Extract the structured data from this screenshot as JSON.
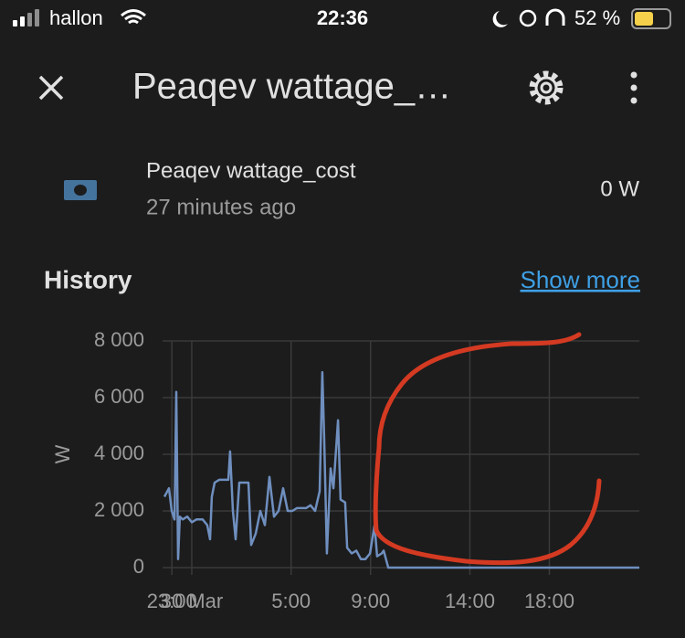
{
  "status_bar": {
    "carrier": "hallon",
    "time": "22:36",
    "battery": "52 %"
  },
  "header": {
    "title": "Peaqev wattage_…"
  },
  "entity": {
    "name": "Peaqev wattage_cost",
    "last_changed": "27 minutes ago",
    "state": "0 W"
  },
  "history": {
    "title": "History",
    "show_more": "Show more"
  },
  "chart_data": {
    "type": "line",
    "ylabel": "W",
    "color": "#6f8fbf",
    "grid": true,
    "xlim": [
      -1.47,
      22.53
    ],
    "xticks": [
      {
        "value": -1,
        "label": "23:00"
      },
      {
        "value": 0,
        "label": "30 Mar"
      },
      {
        "value": 5,
        "label": "5:00"
      },
      {
        "value": 9,
        "label": "9:00"
      },
      {
        "value": 14,
        "label": "14:00"
      },
      {
        "value": 18,
        "label": "18:00"
      }
    ],
    "ylim": [
      0,
      8000
    ],
    "yticks": [
      {
        "value": 0,
        "label": "0"
      },
      {
        "value": 2000,
        "label": "2 000"
      },
      {
        "value": 4000,
        "label": "4 000"
      },
      {
        "value": 6000,
        "label": "6 000"
      },
      {
        "value": 8000,
        "label": "8 000"
      }
    ],
    "x": [
      -1.38,
      -1.15,
      -1.01,
      -0.87,
      -0.78,
      -0.69,
      -0.6,
      -0.46,
      -0.23,
      0,
      0.23,
      0.55,
      0.78,
      0.92,
      1.01,
      1.15,
      1.38,
      1.84,
      1.93,
      2.07,
      2.21,
      2.39,
      2.85,
      2.99,
      3.22,
      3.45,
      3.68,
      3.91,
      4.14,
      4.37,
      4.6,
      4.83,
      5.06,
      5.29,
      5.75,
      5.98,
      6.21,
      6.44,
      6.57,
      6.67,
      6.8,
      6.99,
      7.13,
      7.36,
      7.49,
      7.72,
      7.82,
      8.05,
      8.28,
      8.51,
      8.74,
      8.97,
      9.2,
      9.33,
      9.56,
      9.66,
      9.89,
      22.53
    ],
    "values": [
      2500,
      2800,
      2000,
      1700,
      6200,
      300,
      1800,
      1700,
      1800,
      1600,
      1700,
      1700,
      1500,
      1000,
      2500,
      3000,
      3100,
      3100,
      4100,
      2000,
      1000,
      3000,
      3000,
      800,
      1200,
      2000,
      1500,
      3200,
      1800,
      2000,
      2800,
      2000,
      2000,
      2100,
      2100,
      2200,
      2000,
      2700,
      6900,
      4500,
      500,
      3500,
      2800,
      5200,
      2400,
      2300,
      700,
      500,
      600,
      300,
      300,
      500,
      1500,
      400,
      500,
      600,
      0,
      0
    ]
  }
}
